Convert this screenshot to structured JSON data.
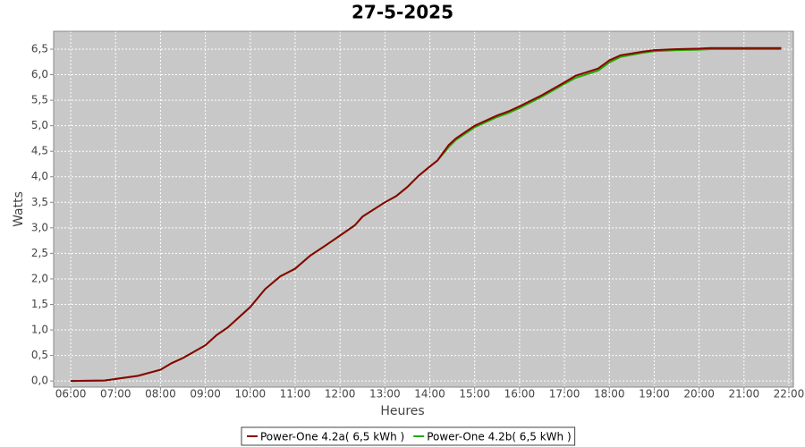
{
  "chart_data": {
    "type": "line",
    "title": "27-5-2025",
    "x_label": "Heures",
    "y_label": "Watts",
    "x": [
      6,
      6.75,
      7,
      7.5,
      8,
      8.25,
      8.5,
      9,
      9.25,
      9.5,
      10,
      10.33,
      10.67,
      11,
      11.33,
      11.67,
      12,
      12.33,
      12.5,
      13,
      13.25,
      13.5,
      13.75,
      14,
      14.17,
      14.42,
      14.58,
      15,
      15.5,
      15.75,
      16,
      16.5,
      17,
      17.25,
      17.75,
      18,
      18.25,
      18.75,
      19,
      19.5,
      20,
      20.25,
      21,
      21.83
    ],
    "series": [
      {
        "name": "Power-One 4.2a( 6,5 kWh )",
        "color": "#8b0000",
        "values": [
          0,
          0.01,
          0.04,
          0.1,
          0.22,
          0.35,
          0.45,
          0.7,
          0.9,
          1.05,
          1.45,
          1.8,
          2.05,
          2.2,
          2.45,
          2.65,
          2.85,
          3.05,
          3.22,
          3.5,
          3.62,
          3.8,
          4.02,
          4.2,
          4.32,
          4.62,
          4.75,
          5.0,
          5.2,
          5.28,
          5.38,
          5.6,
          5.85,
          5.98,
          6.12,
          6.28,
          6.38,
          6.45,
          6.48,
          6.5,
          6.51,
          6.52,
          6.52,
          6.52
        ]
      },
      {
        "name": "Power-One 4.2b( 6,5 kWh )",
        "color": "#22aa00",
        "values": [
          0,
          0.01,
          0.04,
          0.1,
          0.22,
          0.35,
          0.45,
          0.7,
          0.9,
          1.05,
          1.45,
          1.8,
          2.05,
          2.2,
          2.45,
          2.65,
          2.85,
          3.05,
          3.22,
          3.5,
          3.62,
          3.8,
          4.02,
          4.2,
          4.32,
          4.58,
          4.72,
          4.97,
          5.17,
          5.25,
          5.35,
          5.57,
          5.82,
          5.94,
          6.08,
          6.24,
          6.35,
          6.43,
          6.46,
          6.48,
          6.49,
          6.5,
          6.5,
          6.5
        ]
      }
    ],
    "xlim": [
      5.62,
      22.1
    ],
    "ylim": [
      -0.12,
      6.85
    ],
    "xticks": [
      {
        "value": 6,
        "label": "06:00"
      },
      {
        "value": 7,
        "label": "07:00"
      },
      {
        "value": 8,
        "label": "08:00"
      },
      {
        "value": 9,
        "label": "09:00"
      },
      {
        "value": 10,
        "label": "10:00"
      },
      {
        "value": 11,
        "label": "11:00"
      },
      {
        "value": 12,
        "label": "12:00"
      },
      {
        "value": 13,
        "label": "13:00"
      },
      {
        "value": 14,
        "label": "14:00"
      },
      {
        "value": 15,
        "label": "15:00"
      },
      {
        "value": 16,
        "label": "16:00"
      },
      {
        "value": 17,
        "label": "17:00"
      },
      {
        "value": 18,
        "label": "18:00"
      },
      {
        "value": 19,
        "label": "19:00"
      },
      {
        "value": 20,
        "label": "20:00"
      },
      {
        "value": 21,
        "label": "21:00"
      },
      {
        "value": 22,
        "label": "22:00"
      }
    ],
    "yticks": [
      {
        "value": 0,
        "label": "0,0"
      },
      {
        "value": 0.5,
        "label": "0,5"
      },
      {
        "value": 1,
        "label": "1,0"
      },
      {
        "value": 1.5,
        "label": "1,5"
      },
      {
        "value": 2,
        "label": "2,0"
      },
      {
        "value": 2.5,
        "label": "2,5"
      },
      {
        "value": 3,
        "label": "3,0"
      },
      {
        "value": 3.5,
        "label": "3,5"
      },
      {
        "value": 4,
        "label": "4,0"
      },
      {
        "value": 4.5,
        "label": "4,5"
      },
      {
        "value": 5,
        "label": "5,0"
      },
      {
        "value": 5.5,
        "label": "5,5"
      },
      {
        "value": 6,
        "label": "6,0"
      },
      {
        "value": 6.5,
        "label": "6,5"
      }
    ],
    "grid": true,
    "legend": "bottom",
    "background": "#c8c8c8"
  }
}
